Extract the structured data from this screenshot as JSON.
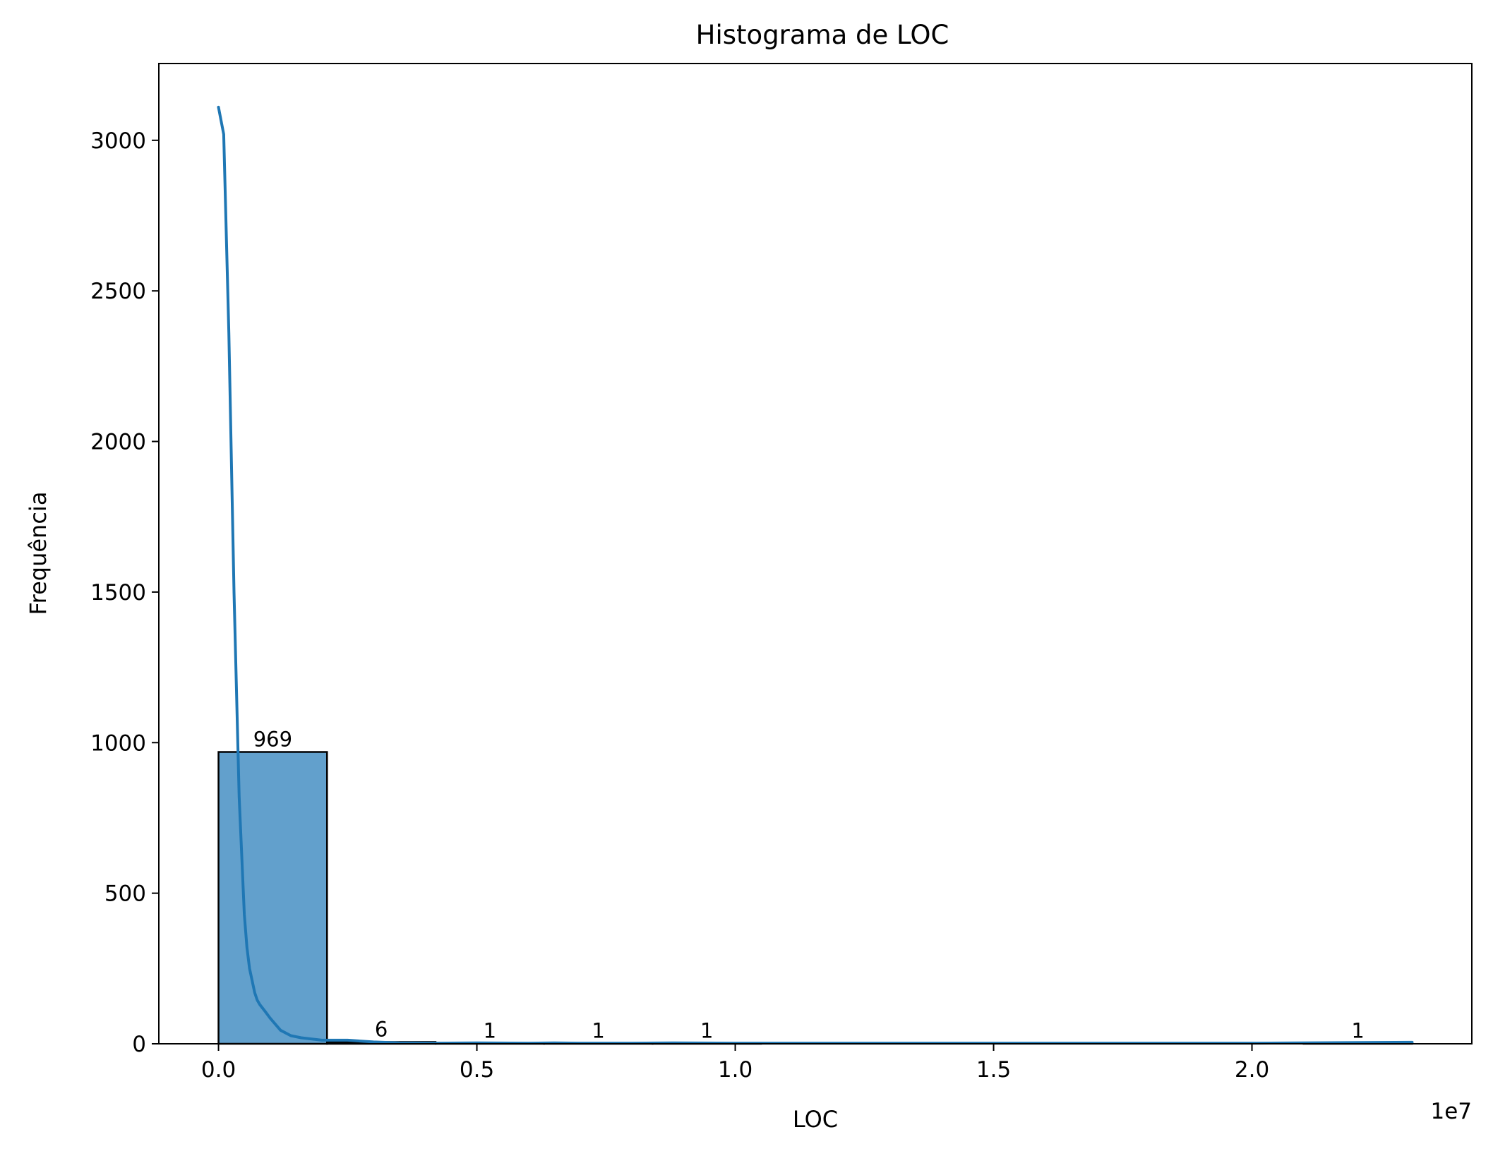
{
  "chart_data": {
    "type": "bar",
    "title": "Histograma de LOC",
    "xlabel": "LOC",
    "ylabel": "Frequência",
    "x_offset_label": "1e7",
    "xlim": [
      -1155000,
      24255000
    ],
    "ylim": [
      0,
      3255
    ],
    "x_ticks": [
      0,
      5000000,
      10000000,
      15000000,
      20000000
    ],
    "x_tick_labels": [
      "0.0",
      "0.5",
      "1.0",
      "1.5",
      "2.0"
    ],
    "y_ticks": [
      0,
      500,
      1000,
      1500,
      2000,
      2500,
      3000
    ],
    "y_tick_labels": [
      "0",
      "500",
      "1000",
      "1500",
      "2000",
      "2500",
      "3000"
    ],
    "bins": [
      {
        "start": 0,
        "end": 2100000,
        "count": 969,
        "label": "969"
      },
      {
        "start": 2100000,
        "end": 4200000,
        "count": 6,
        "label": "6"
      },
      {
        "start": 4200000,
        "end": 6300000,
        "count": 1,
        "label": "1"
      },
      {
        "start": 6300000,
        "end": 8400000,
        "count": 1,
        "label": "1"
      },
      {
        "start": 8400000,
        "end": 10500000,
        "count": 1,
        "label": "1"
      },
      {
        "start": 10500000,
        "end": 12600000,
        "count": 0,
        "label": ""
      },
      {
        "start": 12600000,
        "end": 14700000,
        "count": 0,
        "label": ""
      },
      {
        "start": 14700000,
        "end": 16800000,
        "count": 0,
        "label": ""
      },
      {
        "start": 16800000,
        "end": 18900000,
        "count": 0,
        "label": ""
      },
      {
        "start": 18900000,
        "end": 21000000,
        "count": 0,
        "label": ""
      },
      {
        "start": 21000000,
        "end": 23100000,
        "count": 1,
        "label": "1"
      }
    ],
    "kde": {
      "x": [
        0,
        100000,
        200000,
        300000,
        400000,
        500000,
        550000,
        600000,
        700000,
        750000,
        800000,
        900000,
        1000000,
        1200000,
        1400000,
        1600000,
        2000000,
        2500000,
        3000000,
        3500000,
        4200000,
        5000000,
        6000000,
        6500000,
        7000000,
        8000000,
        8800000,
        10000000,
        15000000,
        20000000,
        23100000
      ],
      "y": [
        3110,
        3020,
        2360,
        1500,
        820,
        430,
        320,
        250,
        170,
        145,
        130,
        108,
        85,
        45,
        27,
        20,
        12,
        12,
        6,
        3,
        2,
        3,
        2,
        3,
        2,
        2,
        3,
        2,
        2,
        2,
        5
      ]
    },
    "colors": {
      "bar_fill": "#62a0cc",
      "bar_edge": "#000000",
      "kde_line": "#1f77b4"
    },
    "grid": false
  }
}
